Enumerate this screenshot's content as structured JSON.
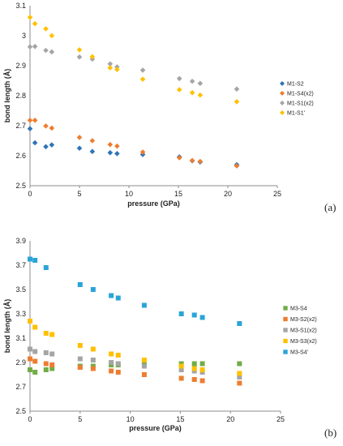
{
  "chart_data": [
    {
      "type": "scatter",
      "panel_label": "(a)",
      "xlabel": "pressure (GPa)",
      "ylabel": "bond length (Å)",
      "xlim": [
        0,
        25
      ],
      "ylim": [
        2.5,
        3.1
      ],
      "x_ticks": [
        0,
        5,
        10,
        15,
        20,
        25
      ],
      "y_ticks": [
        2.5,
        2.6,
        2.7,
        2.8,
        2.9,
        3.0,
        3.1
      ],
      "y_tick_labels": [
        "2.5",
        "2.6",
        "2.7",
        "2.8",
        "2.9",
        "3",
        "3.1"
      ],
      "grid": false,
      "legend_position": "right",
      "series": [
        {
          "name": "M1-S2",
          "color": "#2e75b6",
          "marker": "diamond",
          "x": [
            0,
            0.5,
            1.6,
            2.2,
            5.0,
            6.3,
            8.1,
            8.8,
            11.4,
            15.1,
            16.4,
            17.2,
            20.9
          ],
          "y": [
            2.69,
            2.643,
            2.63,
            2.636,
            2.625,
            2.614,
            2.61,
            2.607,
            2.604,
            2.596,
            2.583,
            2.579,
            2.57
          ]
        },
        {
          "name": "M1-S4(x2)",
          "color": "#ed7d31",
          "marker": "diamond",
          "x": [
            0,
            0.5,
            1.6,
            2.2,
            5.0,
            6.3,
            8.1,
            8.8,
            11.4,
            15.1,
            16.4,
            17.2,
            20.9
          ],
          "y": [
            2.718,
            2.718,
            2.699,
            2.692,
            2.661,
            2.65,
            2.637,
            2.632,
            2.612,
            2.593,
            2.584,
            2.581,
            2.566
          ]
        },
        {
          "name": "M1-S1(x2)",
          "color": "#a5a5a5",
          "marker": "diamond",
          "x": [
            0,
            0.5,
            1.6,
            2.2,
            5.0,
            6.3,
            8.1,
            8.8,
            11.4,
            15.1,
            16.4,
            17.2,
            20.9
          ],
          "y": [
            2.963,
            2.964,
            2.951,
            2.946,
            2.929,
            2.922,
            2.906,
            2.896,
            2.885,
            2.857,
            2.848,
            2.841,
            2.822
          ]
        },
        {
          "name": "M1-S1'",
          "color": "#ffc000",
          "marker": "diamond",
          "x": [
            0,
            0.5,
            1.6,
            2.2,
            5.0,
            6.3,
            8.1,
            8.8,
            11.4,
            15.1,
            16.4,
            17.2,
            20.9
          ],
          "y": [
            3.061,
            3.04,
            3.023,
            3.0,
            2.953,
            2.93,
            2.893,
            2.887,
            2.855,
            2.82,
            2.81,
            2.802,
            2.78
          ]
        }
      ]
    },
    {
      "type": "scatter",
      "panel_label": "(b)",
      "xlabel": "pressure (GPa)",
      "ylabel": "bond length (Å)",
      "xlim": [
        0,
        25
      ],
      "ylim": [
        2.5,
        3.9
      ],
      "x_ticks": [
        0,
        5,
        10,
        15,
        20,
        25
      ],
      "y_ticks": [
        2.5,
        2.7,
        2.9,
        3.1,
        3.3,
        3.5,
        3.7,
        3.9
      ],
      "y_tick_labels": [
        "2.5",
        "2.7",
        "2.9",
        "3.1",
        "3.3",
        "3.5",
        "3.7",
        "3.9"
      ],
      "grid": false,
      "legend_position": "right",
      "series": [
        {
          "name": "M3-S4",
          "color": "#70ad47",
          "marker": "square",
          "x": [
            0,
            0.5,
            1.6,
            2.2,
            5.0,
            6.3,
            8.1,
            8.8,
            11.4,
            15.1,
            16.4,
            17.2,
            20.9
          ],
          "y": [
            2.84,
            2.82,
            2.84,
            2.85,
            2.87,
            2.87,
            2.88,
            2.88,
            2.89,
            2.89,
            2.89,
            2.89,
            2.89
          ]
        },
        {
          "name": "M3-S2(x2)",
          "color": "#ed7d31",
          "marker": "square",
          "x": [
            0,
            0.5,
            1.6,
            2.2,
            5.0,
            6.3,
            8.1,
            8.8,
            11.4,
            15.1,
            16.4,
            17.2,
            20.9
          ],
          "y": [
            2.93,
            2.91,
            2.89,
            2.88,
            2.86,
            2.85,
            2.83,
            2.82,
            2.8,
            2.77,
            2.76,
            2.75,
            2.73
          ]
        },
        {
          "name": "M3-S1(x2)",
          "color": "#a5a5a5",
          "marker": "square",
          "x": [
            0,
            0.5,
            1.6,
            2.2,
            5.0,
            6.3,
            8.1,
            8.8,
            11.4,
            15.1,
            16.4,
            17.2,
            20.9
          ],
          "y": [
            3.01,
            2.99,
            2.98,
            2.97,
            2.93,
            2.92,
            2.9,
            2.89,
            2.87,
            2.84,
            2.83,
            2.82,
            2.78
          ]
        },
        {
          "name": "M3-S3(x2)",
          "color": "#ffc000",
          "marker": "square",
          "x": [
            0,
            0.5,
            1.6,
            2.2,
            5.0,
            6.3,
            8.1,
            8.8,
            11.4,
            15.1,
            16.4,
            17.2,
            20.9
          ],
          "y": [
            3.24,
            3.19,
            3.14,
            3.13,
            3.04,
            3.01,
            2.97,
            2.96,
            2.92,
            2.87,
            2.85,
            2.84,
            2.81
          ]
        },
        {
          "name": "M3-S4'",
          "color": "#2aa4d8",
          "marker": "square",
          "x": [
            0,
            0.5,
            1.6,
            5.0,
            6.3,
            8.1,
            8.8,
            11.4,
            15.1,
            16.4,
            17.2,
            20.9
          ],
          "y": [
            3.75,
            3.74,
            3.68,
            3.54,
            3.5,
            3.45,
            3.43,
            3.37,
            3.3,
            3.29,
            3.27,
            3.22
          ]
        }
      ]
    }
  ]
}
